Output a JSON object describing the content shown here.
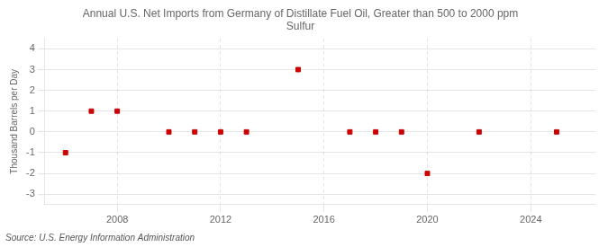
{
  "chart_data": {
    "type": "scatter",
    "title": "Annual U.S. Net Imports from Germany of Distillate Fuel Oil, Greater than 500 to 2000 ppm\nSulfur",
    "ylabel": "Thousand Barrels per Day",
    "source": "Source: U.S. Energy Information Administration",
    "x": [
      2006,
      2007,
      2008,
      2010,
      2011,
      2012,
      2013,
      2015,
      2017,
      2018,
      2019,
      2020,
      2022,
      2025
    ],
    "values": [
      -1,
      1,
      1,
      0,
      0,
      0,
      0,
      3,
      0,
      0,
      0,
      -2,
      0,
      0
    ],
    "color": "#cc0000",
    "marker": "square",
    "xlim": [
      2005.2,
      2026.5
    ],
    "ylim": [
      -3.5,
      4.5
    ],
    "xticks": [
      2008,
      2012,
      2016,
      2020,
      2024
    ],
    "yticks": [
      -3,
      -2,
      -1,
      0,
      1,
      2,
      3,
      4
    ],
    "grid": true
  }
}
